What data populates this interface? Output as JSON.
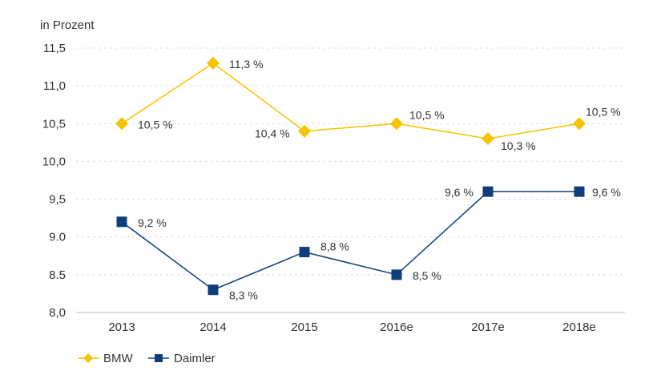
{
  "chart_data": {
    "type": "line",
    "unit_label": "in Prozent",
    "categories": [
      "2013",
      "2014",
      "2015",
      "2016e",
      "2017e",
      "2018e"
    ],
    "y_ticks": [
      "8,0",
      "8.5",
      "9.0",
      "9,5",
      "10,0",
      "10,5",
      "11,0",
      "11,5"
    ],
    "ylim": [
      8.0,
      11.5
    ],
    "grid": true,
    "legend_position": "bottom-left",
    "series": [
      {
        "name": "BMW",
        "color": "#f5c400",
        "marker": "diamond",
        "values": [
          10.5,
          11.3,
          10.4,
          10.5,
          10.3,
          10.5
        ],
        "labels": [
          "10,5 %",
          "11,3 %",
          "10,4 %",
          "10,5 %",
          "10,3 %",
          "10,5 %"
        ]
      },
      {
        "name": "Daimler",
        "color": "#0f3c7a",
        "marker": "square",
        "values": [
          9.2,
          8.3,
          8.8,
          8.5,
          9.6,
          9.6
        ],
        "labels": [
          "9,2 %",
          "8,3 %",
          "8,8 %",
          "8,5 %",
          "9,6 %",
          "9,6 %"
        ]
      }
    ]
  }
}
